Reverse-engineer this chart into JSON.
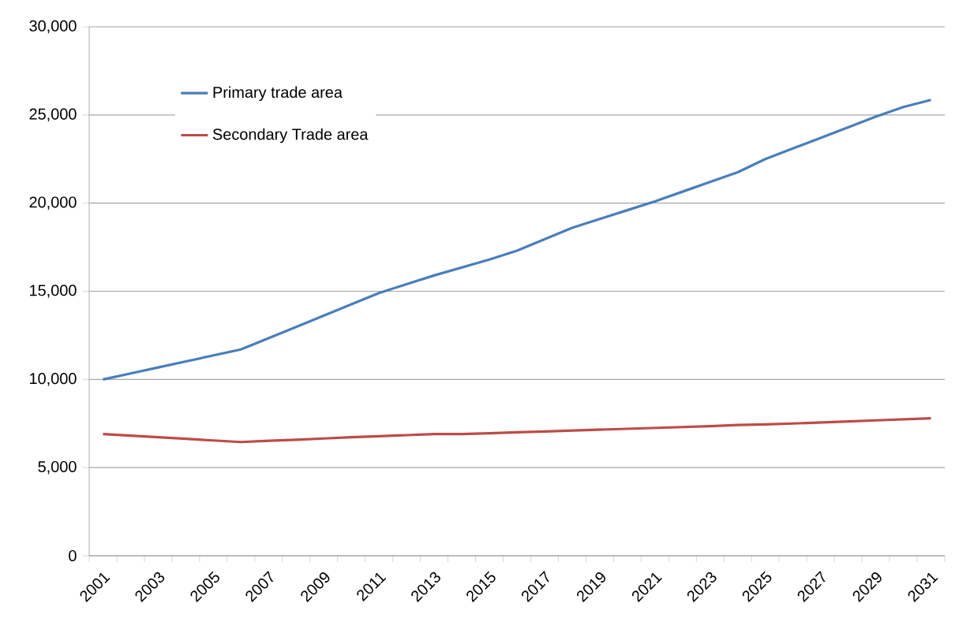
{
  "chart_data": {
    "type": "line",
    "categories": [
      "2001",
      null,
      "2003",
      null,
      "2005",
      null,
      "2007",
      null,
      "2009",
      null,
      "2011",
      null,
      "2013",
      null,
      "2015",
      null,
      "2017",
      null,
      "2019",
      null,
      "2021",
      null,
      "2023",
      null,
      "2025",
      null,
      "2027",
      null,
      "2029",
      null,
      "2031"
    ],
    "series": [
      {
        "name": "Primary trade area",
        "color": "#4a7ebb",
        "values": [
          10000,
          10340,
          10680,
          11020,
          11360,
          11700,
          12340,
          12980,
          13620,
          14260,
          14900,
          15400,
          15900,
          16350,
          16800,
          17300,
          17950,
          18600,
          19100,
          19600,
          20100,
          20650,
          21200,
          21750,
          22500,
          23100,
          23700,
          24300,
          24900,
          25450,
          25850
        ]
      },
      {
        "name": "Secondary Trade area",
        "color": "#be4b48",
        "values": [
          6900,
          6810,
          6720,
          6630,
          6540,
          6450,
          6520,
          6580,
          6650,
          6720,
          6780,
          6840,
          6900,
          6900,
          6950,
          7000,
          7050,
          7100,
          7150,
          7200,
          7250,
          7300,
          7350,
          7420,
          7450,
          7500,
          7560,
          7620,
          7680,
          7740,
          7800
        ]
      }
    ],
    "ylim": [
      0,
      30000
    ],
    "yticks": [
      0,
      {
        "value": 5000,
        "label": "5,000"
      },
      {
        "value": 10000,
        "label": "10,000"
      },
      {
        "value": 15000,
        "label": "15,000"
      },
      {
        "value": 20000,
        "label": "20,000"
      },
      {
        "value": 25000,
        "label": "25,000"
      },
      {
        "value": 30000,
        "label": "30,000"
      }
    ],
    "grid": "y",
    "legend": "top left",
    "marker": "none",
    "line_style": "solid"
  }
}
